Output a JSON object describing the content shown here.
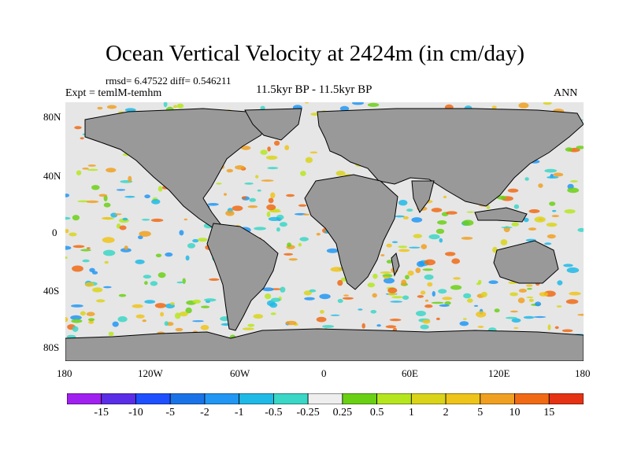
{
  "title": "Ocean Vertical Velocity at 2424m (in cm/day)",
  "stats": {
    "text": "rmsd= 6.47522 diff= 0.546211"
  },
  "experiment": {
    "text": "Expt = temlM-temhm"
  },
  "period": {
    "text": "11.5kyr BP - 11.5kyr BP"
  },
  "season": {
    "text": "ANN"
  },
  "lat_ticks": [
    "80N",
    "40N",
    "0",
    "40S",
    "80S"
  ],
  "lon_ticks": [
    "180",
    "120W",
    "60W",
    "0",
    "60E",
    "120E",
    "180"
  ],
  "colorbar": {
    "labels": [
      "-15",
      "-10",
      "-5",
      "-2",
      "-1",
      "-0.5",
      "-0.25",
      "0.25",
      "0.5",
      "1",
      "2",
      "5",
      "10",
      "15"
    ],
    "colors": [
      "#a020f0",
      "#5a2ee6",
      "#1e50ff",
      "#1a73e6",
      "#2196f3",
      "#1fb9e6",
      "#3ad6c6",
      "#eeeeee",
      "#6ad014",
      "#b5e61d",
      "#d9d31a",
      "#eec31a",
      "#f0a020",
      "#f06a14",
      "#e63214"
    ]
  },
  "colors": {
    "land": "#999999",
    "coast": "#000000",
    "ocean_background": "#e6e6e6"
  }
}
